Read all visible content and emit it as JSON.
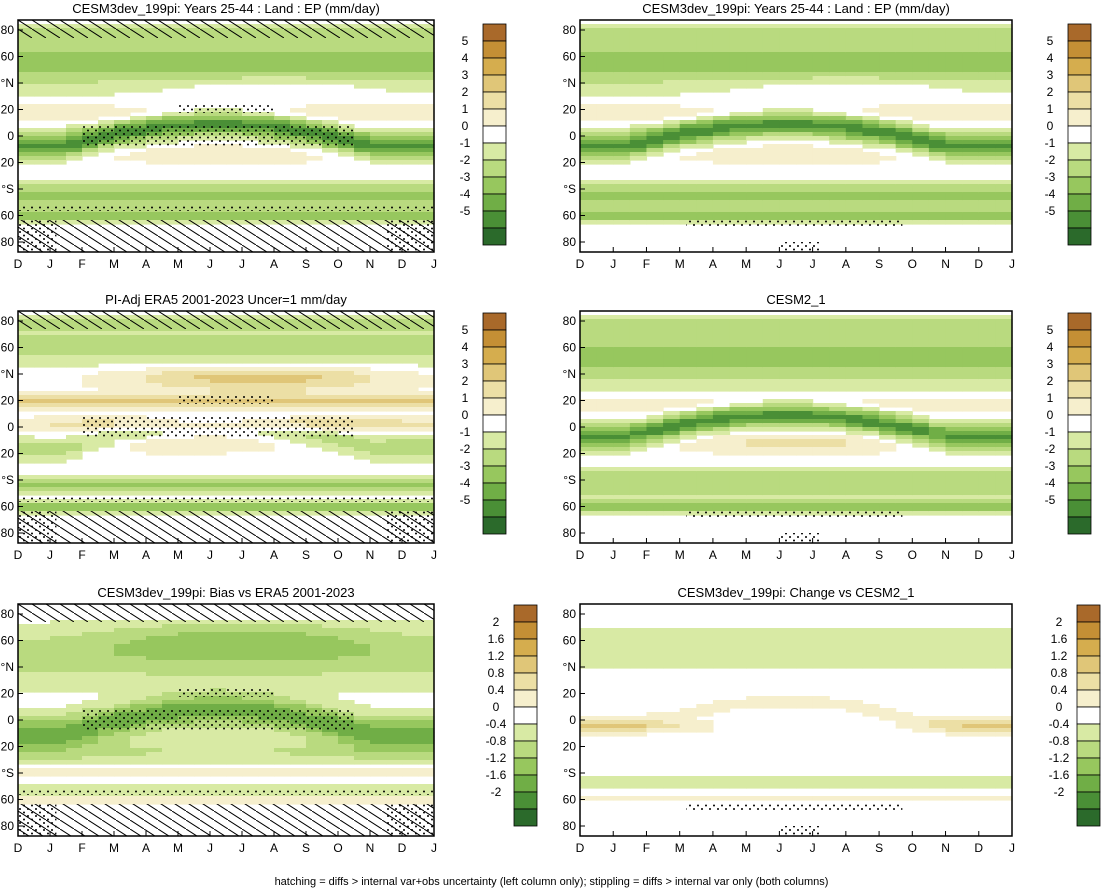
{
  "colors": {
    "brown_ramp": [
      "#f6efcd",
      "#ecdfa5",
      "#e0c678",
      "#d5ad4e",
      "#c48f35",
      "#a9692a"
    ],
    "green_ramp": [
      "#d8eaa4",
      "#b9da7f",
      "#97c75e",
      "#70ae46",
      "#4a8f36",
      "#2b6a2b"
    ],
    "neutral": "#ffffff"
  },
  "footnote": "hatching = diffs > internal var+obs uncertainty (left column only); stippling = diffs > internal var only (both columns)",
  "chart_data": [
    {
      "type": "heatmap",
      "title": "CESM3dev_199pi: Years 25-44 : Land : EP (mm/day)",
      "pattern": "model",
      "x_ticks": [
        "D",
        "J",
        "F",
        "M",
        "A",
        "M",
        "J",
        "J",
        "A",
        "S",
        "O",
        "N",
        "D",
        "J"
      ],
      "y_ticks": [
        "80",
        "60",
        "°N",
        "20",
        "0",
        "20",
        "°S",
        "60",
        "80"
      ],
      "colorbar_labels": [
        "5",
        "4",
        "3",
        "2",
        "1",
        "0",
        "-1",
        "-2",
        "-3",
        "-4",
        "-5"
      ],
      "hatching": true
    },
    {
      "type": "heatmap",
      "title": "CESM3dev_199pi: Years 25-44 : Land : EP (mm/day)",
      "pattern": "model",
      "x_ticks": [
        "D",
        "J",
        "F",
        "M",
        "A",
        "M",
        "J",
        "J",
        "A",
        "S",
        "O",
        "N",
        "D",
        "J"
      ],
      "y_ticks": [
        "80",
        "60",
        "°N",
        "20",
        "0",
        "20",
        "°S",
        "60",
        "80"
      ],
      "colorbar_labels": [
        "5",
        "4",
        "3",
        "2",
        "1",
        "0",
        "-1",
        "-2",
        "-3",
        "-4",
        "-5"
      ],
      "hatching": false
    },
    {
      "type": "heatmap",
      "title": "PI-Adj ERA5 2001-2023 Uncer=1 mm/day",
      "pattern": "obs",
      "x_ticks": [
        "D",
        "J",
        "F",
        "M",
        "A",
        "M",
        "J",
        "J",
        "A",
        "S",
        "O",
        "N",
        "D",
        "J"
      ],
      "y_ticks": [
        "80",
        "60",
        "°N",
        "20",
        "0",
        "20",
        "°S",
        "60",
        "80"
      ],
      "colorbar_labels": [
        "5",
        "4",
        "3",
        "2",
        "1",
        "0",
        "-1",
        "-2",
        "-3",
        "-4",
        "-5"
      ],
      "hatching": true
    },
    {
      "type": "heatmap",
      "title": "CESM2_1",
      "pattern": "model2",
      "x_ticks": [
        "D",
        "J",
        "F",
        "M",
        "A",
        "M",
        "J",
        "J",
        "A",
        "S",
        "O",
        "N",
        "D",
        "J"
      ],
      "y_ticks": [
        "80",
        "60",
        "°N",
        "20",
        "0",
        "20",
        "°S",
        "60",
        "80"
      ],
      "colorbar_labels": [
        "5",
        "4",
        "3",
        "2",
        "1",
        "0",
        "-1",
        "-2",
        "-3",
        "-4",
        "-5"
      ],
      "hatching": false
    },
    {
      "type": "heatmap",
      "title": "CESM3dev_199pi: Bias vs ERA5 2001-2023",
      "pattern": "bias",
      "x_ticks": [
        "D",
        "J",
        "F",
        "M",
        "A",
        "M",
        "J",
        "J",
        "A",
        "S",
        "O",
        "N",
        "D",
        "J"
      ],
      "y_ticks": [
        "80",
        "60",
        "°N",
        "20",
        "0",
        "20",
        "°S",
        "60",
        "80"
      ],
      "colorbar_labels": [
        "2",
        "1.6",
        "1.2",
        "0.8",
        "0.4",
        "0",
        "-0.4",
        "-0.8",
        "-1.2",
        "-1.6",
        "-2"
      ],
      "hatching": true
    },
    {
      "type": "heatmap",
      "title": "CESM3dev_199pi: Change vs CESM2_1",
      "pattern": "change",
      "x_ticks": [
        "D",
        "J",
        "F",
        "M",
        "A",
        "M",
        "J",
        "J",
        "A",
        "S",
        "O",
        "N",
        "D",
        "J"
      ],
      "y_ticks": [
        "80",
        "60",
        "°N",
        "20",
        "0",
        "20",
        "°S",
        "60",
        "80"
      ],
      "colorbar_labels": [
        "2",
        "1.6",
        "1.2",
        "0.8",
        "0.4",
        "0",
        "-0.4",
        "-0.8",
        "-1.2",
        "-1.6",
        "-2"
      ],
      "hatching": false
    }
  ]
}
